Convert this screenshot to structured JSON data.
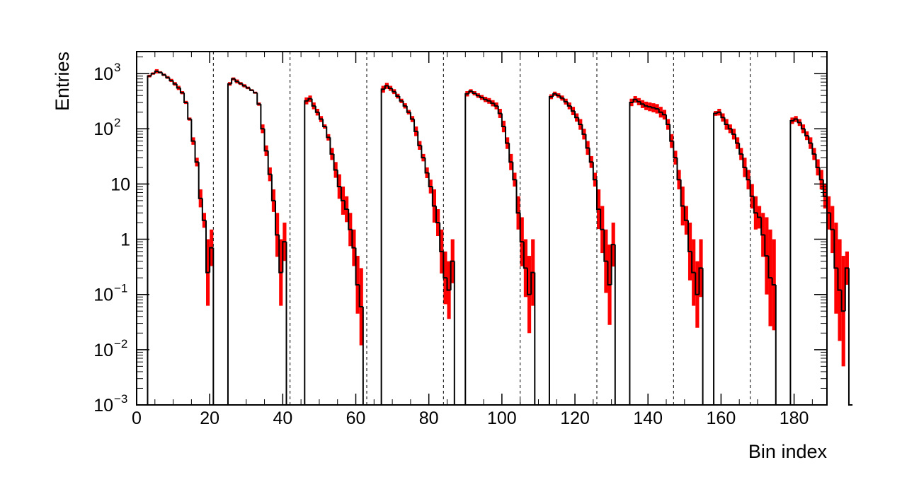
{
  "chart_data": {
    "type": "histogram",
    "title": "",
    "xlabel": "Bin index",
    "ylabel": "Entries",
    "x_range": [
      0,
      189
    ],
    "y_range": [
      0.001,
      2500
    ],
    "y_scale": "log",
    "x_ticks": [
      0,
      20,
      40,
      60,
      80,
      100,
      120,
      140,
      160,
      180
    ],
    "x_tick_labels": [
      "0",
      "20",
      "40",
      "60",
      "80",
      "100",
      "120",
      "140",
      "160",
      "180"
    ],
    "y_ticks": [
      {
        "value": 0.001,
        "base": "10",
        "exp": "−3"
      },
      {
        "value": 0.01,
        "base": "10",
        "exp": "−2"
      },
      {
        "value": 0.1,
        "base": "10",
        "exp": "−1"
      },
      {
        "value": 1,
        "base": "1",
        "exp": ""
      },
      {
        "value": 10,
        "base": "10",
        "exp": ""
      },
      {
        "value": 100,
        "base": "10",
        "exp": "2"
      },
      {
        "value": 1000,
        "base": "10",
        "exp": "3"
      }
    ],
    "separators_x": [
      21,
      42,
      63,
      84,
      105,
      126,
      147,
      168
    ],
    "series": [
      {
        "kind": "step_line",
        "color": "#000000",
        "values": [
          0,
          0,
          0,
          900,
          1000,
          1100,
          1050,
          950,
          850,
          750,
          650,
          550,
          450,
          300,
          150,
          60,
          25,
          5.5,
          2.2,
          0.25,
          0.7,
          0,
          0,
          0,
          0,
          650,
          800,
          720,
          660,
          600,
          550,
          500,
          450,
          280,
          100,
          40,
          15,
          5,
          1.2,
          0.25,
          0.9,
          0,
          0,
          0,
          0,
          0,
          320,
          350,
          260,
          200,
          150,
          110,
          70,
          35,
          18,
          9,
          5,
          3.5,
          1.5,
          0.7,
          0.15,
          0.06,
          0,
          0,
          0,
          0,
          0,
          520,
          600,
          540,
          470,
          390,
          320,
          260,
          200,
          150,
          90,
          50,
          30,
          16,
          9,
          4,
          2,
          0.6,
          0.2,
          0.12,
          0.4,
          0,
          0,
          0,
          430,
          480,
          440,
          400,
          370,
          340,
          320,
          290,
          260,
          190,
          110,
          55,
          25,
          12,
          3,
          0.9,
          0.3,
          0.1,
          0.25,
          0,
          0,
          0,
          0,
          380,
          430,
          400,
          360,
          310,
          260,
          210,
          160,
          120,
          80,
          45,
          25,
          12,
          3.5,
          1.5,
          0.4,
          0.15,
          0.8,
          0,
          0,
          0,
          0,
          300,
          340,
          310,
          280,
          260,
          250,
          240,
          230,
          200,
          180,
          120,
          60,
          30,
          12,
          4,
          2.2,
          0.6,
          0.25,
          0.1,
          0.3,
          0,
          0,
          0,
          190,
          200,
          160,
          120,
          100,
          80,
          55,
          35,
          20,
          12,
          6,
          3,
          2.5,
          1.2,
          0.5,
          0.2,
          0.15,
          0,
          0,
          0,
          0,
          140,
          150,
          130,
          100,
          75,
          55,
          35,
          20,
          12,
          6,
          3,
          1.5,
          0.3,
          0.12,
          0.05,
          0.3,
          0
        ]
      },
      {
        "kind": "error_band",
        "color": "#ff0000",
        "values": [
          0,
          0,
          0,
          950,
          1050,
          1200,
          1100,
          1000,
          900,
          800,
          700,
          600,
          480,
          320,
          160,
          70,
          30,
          8,
          3,
          1,
          1.5,
          0,
          0,
          0,
          0,
          700,
          850,
          780,
          700,
          640,
          580,
          520,
          470,
          300,
          120,
          50,
          20,
          8,
          3,
          1,
          2,
          0,
          0,
          0,
          0,
          0,
          370,
          400,
          300,
          230,
          170,
          120,
          80,
          45,
          25,
          15,
          9,
          6,
          3,
          1.5,
          0.5,
          0.3,
          0,
          0,
          0,
          0,
          0,
          600,
          680,
          600,
          520,
          430,
          350,
          290,
          220,
          170,
          110,
          60,
          35,
          20,
          12,
          8,
          3.5,
          1.5,
          0.6,
          0.4,
          1,
          0,
          0,
          0,
          480,
          520,
          480,
          440,
          410,
          380,
          360,
          330,
          300,
          230,
          140,
          70,
          35,
          16,
          6,
          2.5,
          1,
          0.5,
          1,
          0,
          0,
          0,
          0,
          420,
          470,
          440,
          400,
          350,
          300,
          250,
          190,
          150,
          100,
          60,
          32,
          16,
          8,
          4,
          1.5,
          0.8,
          2,
          0,
          0,
          0,
          0,
          350,
          390,
          360,
          330,
          310,
          300,
          290,
          280,
          250,
          220,
          150,
          80,
          40,
          18,
          9,
          4,
          2,
          1,
          0.4,
          1,
          0,
          0,
          0,
          210,
          230,
          190,
          150,
          120,
          100,
          70,
          45,
          30,
          18,
          10,
          6,
          4,
          3,
          2.5,
          1.5,
          1,
          0,
          0,
          0,
          0,
          160,
          170,
          150,
          120,
          90,
          70,
          45,
          28,
          18,
          10,
          6,
          4,
          2,
          1,
          0.5,
          0.6,
          0
        ]
      }
    ],
    "legend": "none",
    "grid": false
  }
}
